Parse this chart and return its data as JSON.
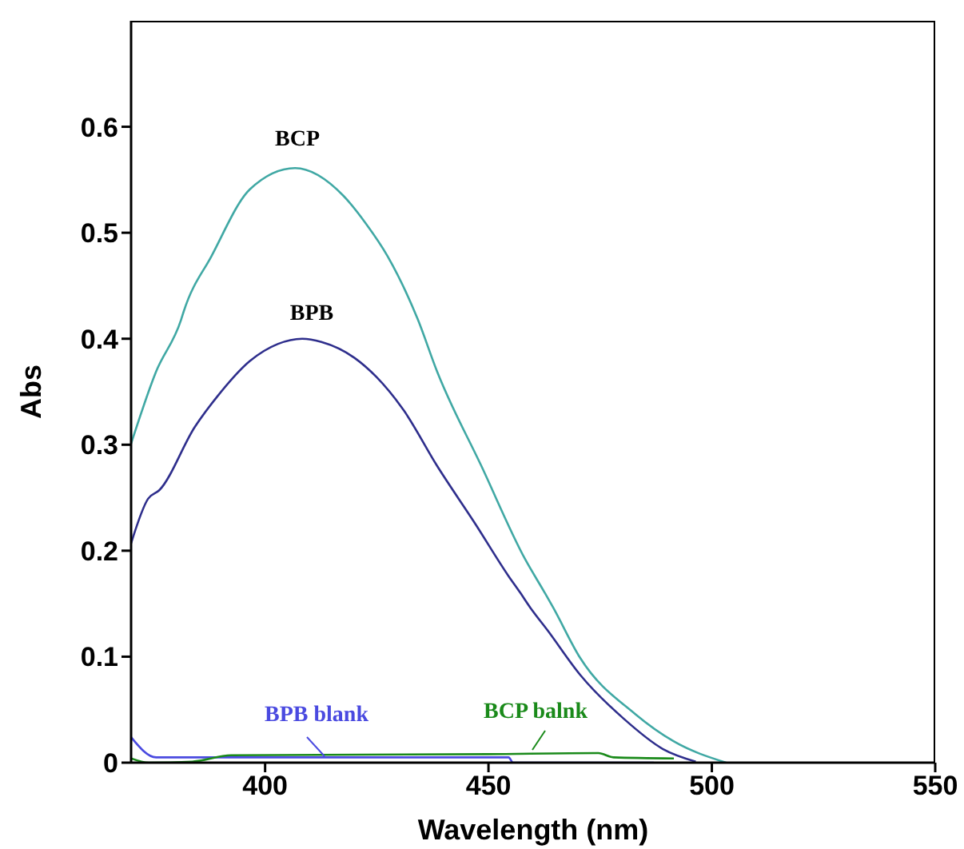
{
  "chart_data": {
    "type": "line",
    "xlabel": "Wavelength (nm)",
    "ylabel": "Abs",
    "xlim": [
      370,
      550
    ],
    "xticks": [
      400,
      450,
      500,
      550
    ],
    "ylim": [
      0,
      0.7
    ],
    "yticks": [
      0,
      0.1,
      0.2,
      0.3,
      0.4,
      0.5,
      0.6
    ],
    "grid": false,
    "legend": false,
    "marker": "none",
    "line_style": "solid",
    "series": [
      {
        "color": "#40a8a4",
        "x": [
          370,
          375.6,
          381.2,
          381.8,
          388,
          396.6,
          406.7,
          417.5,
          422.5,
          427.4,
          434.2,
          438.5,
          448.4,
          458.2,
          462.5,
          464.4,
          470.5,
          482.8,
          491.5,
          503.2
        ],
        "values": [
          0.301,
          0.369,
          0.418,
          0.426,
          0.478,
          0.541,
          0.561,
          0.535,
          0.509,
          0.478,
          0.418,
          0.369,
          0.28,
          0.192,
          0.161,
          0.147,
          0.099,
          0.046,
          0.02,
          0
        ]
      },
      {
        "color": "#2e2e8c",
        "x": [
          370,
          373.8,
          376.3,
          384.3,
          389.2,
          396.6,
          402.8,
          408.3,
          412.6,
          420,
          424.9,
          431.1,
          438.5,
          447.1,
          454.5,
          457,
          459.4,
          463.2,
          470.5,
          480.4,
          489,
          496.4
        ],
        "values": [
          0.207,
          0.249,
          0.257,
          0.317,
          0.345,
          0.379,
          0.395,
          0.4,
          0.397,
          0.382,
          0.364,
          0.332,
          0.28,
          0.225,
          0.176,
          0.161,
          0.146,
          0.125,
          0.083,
          0.041,
          0.013,
          0.001
        ]
      },
      {
        "color": "#4a4ae0",
        "x": [
          370,
          375.6,
          454.5,
          455.5,
          487
        ],
        "values": [
          0.024,
          0.005,
          0.005,
          0,
          0
        ]
      },
      {
        "color": "#1a8a1a",
        "x": [
          370,
          374,
          383.7,
          392.4,
          449.9,
          474.6,
          478,
          491.5
        ],
        "values": [
          0.004,
          0,
          0.001,
          0.007,
          0.008,
          0.009,
          0.005,
          0.004
        ]
      }
    ],
    "annotations": [
      "BCP",
      "BPB",
      "BPB blank",
      "BCP balnk"
    ]
  }
}
